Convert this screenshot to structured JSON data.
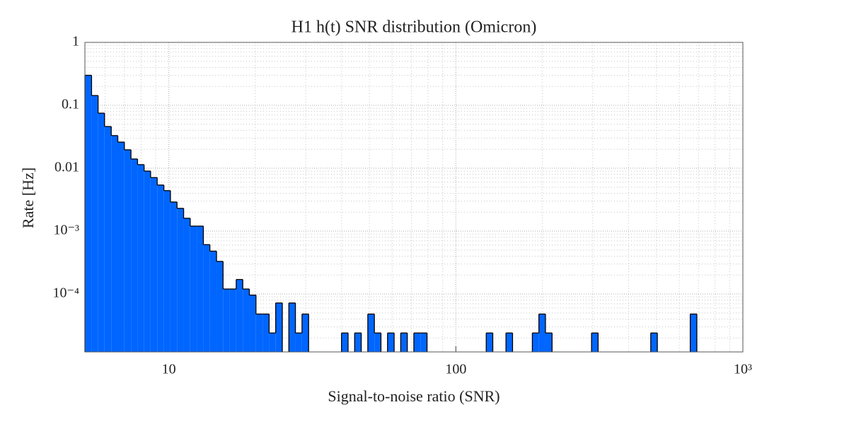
{
  "chart_data": {
    "type": "histogram",
    "title": "H1 h(t) SNR distribution (Omicron)",
    "xlabel": "Signal-to-noise ratio (SNR)",
    "ylabel": "Rate [Hz]",
    "xscale": "log",
    "yscale": "log",
    "grid": true,
    "minor_grid": true,
    "color": "#0066ff",
    "xlim": [
      5.1,
      1000
    ],
    "ylim": [
      1.2e-05,
      1
    ],
    "xticks": [
      10,
      100,
      {
        "value": 1000,
        "label": "10³"
      }
    ],
    "yticks": [
      1,
      0.1,
      0.01,
      {
        "value": 0.001,
        "label": "10⁻³"
      },
      {
        "value": 0.0001,
        "label": "10⁻⁴"
      }
    ],
    "bins": [
      5.1,
      5.38,
      5.67,
      5.97,
      6.3,
      6.64,
      7.0,
      7.38,
      7.78,
      8.2,
      8.64,
      9.11,
      9.61,
      10.13,
      10.68,
      11.26,
      11.87,
      12.51,
      13.19,
      13.9,
      14.66,
      15.45,
      16.29,
      17.17,
      18.1,
      19.08,
      20.12,
      21.21,
      22.36,
      23.57,
      24.85,
      26.19,
      27.61,
      29.11,
      30.69,
      32.35,
      34.11,
      35.95,
      37.9,
      39.96,
      42.12,
      44.4,
      46.81,
      49.35,
      52.02,
      54.84,
      57.81,
      60.95,
      64.25,
      67.73,
      71.4,
      75.27,
      79.36,
      83.66,
      88.19,
      92.97,
      98.0,
      103.3,
      108.9,
      114.8,
      121.1,
      127.6,
      134.5,
      141.8,
      149.5,
      157.6,
      166.2,
      175.2,
      184.7,
      194.7,
      205.2,
      216.4,
      228.1,
      240.5,
      253.5,
      267.2,
      281.7,
      297.0,
      313.1,
      330.1,
      348.0,
      366.8,
      386.7,
      407.7,
      429.8,
      453.1,
      477.6,
      503.5,
      530.8,
      559.6,
      589.9,
      621.9,
      655.6,
      691.2,
      728.6,
      768.1,
      809.8,
      853.7,
      899.9,
      948.7,
      1000
    ],
    "values": [
      0.3,
      0.143,
      0.075,
      0.046,
      0.033,
      0.026,
      0.0196,
      0.014,
      0.0114,
      0.009,
      0.0071,
      0.0054,
      0.0044,
      0.0029,
      0.0023,
      0.0016,
      0.0012,
      0.0012,
      0.00061,
      0.00048,
      0.00033,
      0.00012,
      0.00012,
      0.00017,
      0.00012,
      9.6e-05,
      4.8e-05,
      4.8e-05,
      2.4e-05,
      7.2e-05,
      0,
      7.2e-05,
      2.4e-05,
      4.8e-05,
      0,
      0,
      0,
      0,
      0,
      2.4e-05,
      0,
      2.4e-05,
      0,
      4.8e-05,
      2.4e-05,
      0,
      2.4e-05,
      0,
      2.4e-05,
      0,
      2.4e-05,
      2.4e-05,
      0,
      0,
      0,
      0,
      0,
      0,
      0,
      0,
      0,
      2.4e-05,
      0,
      0,
      2.4e-05,
      0,
      0,
      0,
      2.4e-05,
      4.8e-05,
      2.4e-05,
      0,
      0,
      0,
      0,
      0,
      0,
      2.4e-05,
      0,
      0,
      0,
      0,
      0,
      0,
      0,
      0,
      2.4e-05,
      0,
      0,
      0,
      0,
      0,
      4.8e-05,
      0,
      0,
      0,
      0,
      0,
      0,
      0
    ]
  }
}
